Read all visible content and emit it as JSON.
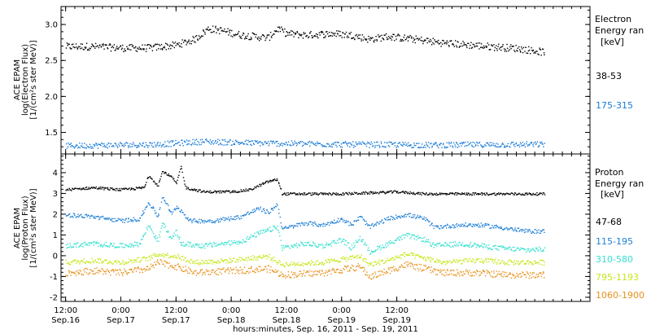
{
  "chart_data": [
    {
      "type": "scatter",
      "panel": "electron",
      "ylabel_lines": [
        "ACE EPAM",
        "log(Electron Flux)",
        "[1/(cm²s ster MeV)]"
      ],
      "ylim": [
        1.2,
        3.25
      ],
      "yticks": [
        1.5,
        2.0,
        2.5,
        3.0
      ],
      "ytick_labels": [
        "1.5",
        "2.0",
        "2.5",
        "3.0"
      ],
      "legend_title_lines": [
        "Electron",
        "Energy ran"
      ],
      "legend_unit": "[keV]",
      "series": [
        {
          "name": "38-53",
          "color": "#000000",
          "knots": [
            [
              0,
              2.7
            ],
            [
              6,
              2.7
            ],
            [
              12,
              2.68
            ],
            [
              18,
              2.68
            ],
            [
              24,
              2.72
            ],
            [
              28,
              2.8
            ],
            [
              31,
              2.95
            ],
            [
              34,
              2.92
            ],
            [
              38,
              2.86
            ],
            [
              44,
              2.82
            ],
            [
              46,
              2.95
            ],
            [
              48,
              2.88
            ],
            [
              52,
              2.86
            ],
            [
              58,
              2.88
            ],
            [
              62,
              2.86
            ],
            [
              66,
              2.8
            ],
            [
              70,
              2.84
            ],
            [
              76,
              2.8
            ],
            [
              82,
              2.75
            ],
            [
              88,
              2.72
            ],
            [
              92,
              2.7
            ],
            [
              97,
              2.68
            ],
            [
              100,
              2.66
            ],
            [
              104,
              2.62
            ]
          ],
          "spread": 0.05
        },
        {
          "name": "175-315",
          "color": "#1a7bd8",
          "knots": [
            [
              0,
              1.32
            ],
            [
              20,
              1.34
            ],
            [
              30,
              1.38
            ],
            [
              40,
              1.36
            ],
            [
              60,
              1.34
            ],
            [
              80,
              1.33
            ],
            [
              104,
              1.34
            ]
          ],
          "spread": 0.04
        }
      ]
    },
    {
      "type": "scatter",
      "panel": "proton",
      "ylabel_lines": [
        "ACE EPAM",
        "log(Proton Flux)",
        "[1/(cm²s ster MeV)]"
      ],
      "ylim": [
        -2.2,
        4.9
      ],
      "yticks": [
        -2,
        -1,
        0,
        1,
        2,
        3,
        4
      ],
      "ytick_labels": [
        "-2",
        "-1",
        "0",
        "1",
        "2",
        "3",
        "4"
      ],
      "legend_title_lines": [
        "Proton",
        "Energy ran"
      ],
      "legend_unit": "[keV]",
      "series": [
        {
          "name": "47-68",
          "color": "#000000",
          "knots": [
            [
              0,
              3.2
            ],
            [
              6,
              3.3
            ],
            [
              12,
              3.2
            ],
            [
              17,
              3.3
            ],
            [
              18,
              3.9
            ],
            [
              20,
              3.4
            ],
            [
              21,
              4.1
            ],
            [
              23,
              3.8
            ],
            [
              24,
              3.5
            ],
            [
              25,
              4.3
            ],
            [
              26,
              3.3
            ],
            [
              30,
              3.1
            ],
            [
              36,
              3.1
            ],
            [
              40,
              3.2
            ],
            [
              44,
              3.6
            ],
            [
              46,
              3.7
            ],
            [
              47,
              3.0
            ],
            [
              56,
              3.0
            ],
            [
              60,
              3.0
            ],
            [
              66,
              3.05
            ],
            [
              72,
              3.1
            ],
            [
              78,
              3.0
            ],
            [
              86,
              3.0
            ],
            [
              92,
              3.0
            ],
            [
              98,
              3.0
            ],
            [
              104,
              3.0
            ]
          ],
          "spread": 0.06
        },
        {
          "name": "115-195",
          "color": "#1f7fd6",
          "knots": [
            [
              0,
              2.0
            ],
            [
              6,
              1.9
            ],
            [
              12,
              1.7
            ],
            [
              16,
              1.8
            ],
            [
              18,
              2.6
            ],
            [
              20,
              1.9
            ],
            [
              21,
              2.9
            ],
            [
              23,
              2.0
            ],
            [
              24,
              2.4
            ],
            [
              25,
              2.2
            ],
            [
              27,
              1.7
            ],
            [
              32,
              1.7
            ],
            [
              38,
              1.9
            ],
            [
              42,
              2.3
            ],
            [
              44,
              2.1
            ],
            [
              46,
              2.5
            ],
            [
              47,
              1.3
            ],
            [
              52,
              1.6
            ],
            [
              56,
              1.5
            ],
            [
              60,
              1.8
            ],
            [
              62,
              1.5
            ],
            [
              64,
              1.9
            ],
            [
              66,
              1.4
            ],
            [
              70,
              1.8
            ],
            [
              74,
              2.0
            ],
            [
              78,
              1.8
            ],
            [
              80,
              1.4
            ],
            [
              86,
              1.5
            ],
            [
              90,
              1.5
            ],
            [
              94,
              1.4
            ],
            [
              100,
              1.2
            ],
            [
              104,
              1.2
            ]
          ],
          "spread": 0.1
        },
        {
          "name": "310-580",
          "color": "#33e0d0",
          "knots": [
            [
              0,
              0.5
            ],
            [
              6,
              0.6
            ],
            [
              12,
              0.5
            ],
            [
              16,
              0.6
            ],
            [
              18,
              1.5
            ],
            [
              20,
              0.7
            ],
            [
              21,
              1.6
            ],
            [
              23,
              0.8
            ],
            [
              24,
              1.2
            ],
            [
              25,
              0.6
            ],
            [
              30,
              0.5
            ],
            [
              38,
              0.7
            ],
            [
              42,
              1.1
            ],
            [
              46,
              1.4
            ],
            [
              47,
              0.4
            ],
            [
              52,
              0.6
            ],
            [
              56,
              0.5
            ],
            [
              60,
              0.8
            ],
            [
              62,
              0.4
            ],
            [
              64,
              0.9
            ],
            [
              66,
              0.2
            ],
            [
              70,
              0.6
            ],
            [
              74,
              1.0
            ],
            [
              78,
              0.8
            ],
            [
              80,
              0.5
            ],
            [
              86,
              0.6
            ],
            [
              90,
              0.5
            ],
            [
              94,
              0.4
            ],
            [
              100,
              0.3
            ],
            [
              104,
              0.35
            ]
          ],
          "spread": 0.12
        },
        {
          "name": "795-1193",
          "color": "#c8e61a",
          "knots": [
            [
              0,
              -0.3
            ],
            [
              6,
              -0.2
            ],
            [
              12,
              -0.3
            ],
            [
              18,
              -0.1
            ],
            [
              20,
              0.1
            ],
            [
              24,
              0.0
            ],
            [
              28,
              -0.3
            ],
            [
              36,
              -0.2
            ],
            [
              44,
              0.0
            ],
            [
              47,
              -0.4
            ],
            [
              56,
              -0.3
            ],
            [
              64,
              0.0
            ],
            [
              66,
              -0.4
            ],
            [
              70,
              -0.2
            ],
            [
              74,
              0.1
            ],
            [
              78,
              -0.1
            ],
            [
              82,
              -0.3
            ],
            [
              90,
              -0.2
            ],
            [
              96,
              -0.3
            ],
            [
              104,
              -0.3
            ]
          ],
          "spread": 0.12
        },
        {
          "name": "1060-1900",
          "color": "#e8901a",
          "knots": [
            [
              0,
              -0.8
            ],
            [
              6,
              -0.7
            ],
            [
              12,
              -0.8
            ],
            [
              18,
              -0.6
            ],
            [
              20,
              -0.3
            ],
            [
              24,
              -0.5
            ],
            [
              28,
              -0.8
            ],
            [
              36,
              -0.7
            ],
            [
              44,
              -0.6
            ],
            [
              47,
              -0.9
            ],
            [
              56,
              -0.8
            ],
            [
              64,
              -0.5
            ],
            [
              66,
              -1.0
            ],
            [
              70,
              -0.7
            ],
            [
              74,
              -0.4
            ],
            [
              78,
              -0.6
            ],
            [
              82,
              -0.8
            ],
            [
              90,
              -0.8
            ],
            [
              96,
              -0.9
            ],
            [
              104,
              -0.9
            ]
          ],
          "spread": 0.16
        }
      ]
    }
  ],
  "x_axis": {
    "range_hours": [
      -1,
      114
    ],
    "data_extent_hours": [
      0,
      104
    ],
    "ticks": [
      {
        "hour": 0,
        "time": "12:00",
        "date": "Sep.16"
      },
      {
        "hour": 12,
        "time": "0:00",
        "date": "Sep.17"
      },
      {
        "hour": 24,
        "time": "12:00",
        "date": "Sep.17"
      },
      {
        "hour": 36,
        "time": "0:00",
        "date": "Sep.18"
      },
      {
        "hour": 48,
        "time": "12:00",
        "date": "Sep.18"
      },
      {
        "hour": 60,
        "time": "0:00",
        "date": "Sep.19"
      },
      {
        "hour": 72,
        "time": "12:00",
        "date": "Sep.19"
      }
    ],
    "label": "hours:minutes, Sep. 16, 2011 - Sep. 19, 2011"
  }
}
